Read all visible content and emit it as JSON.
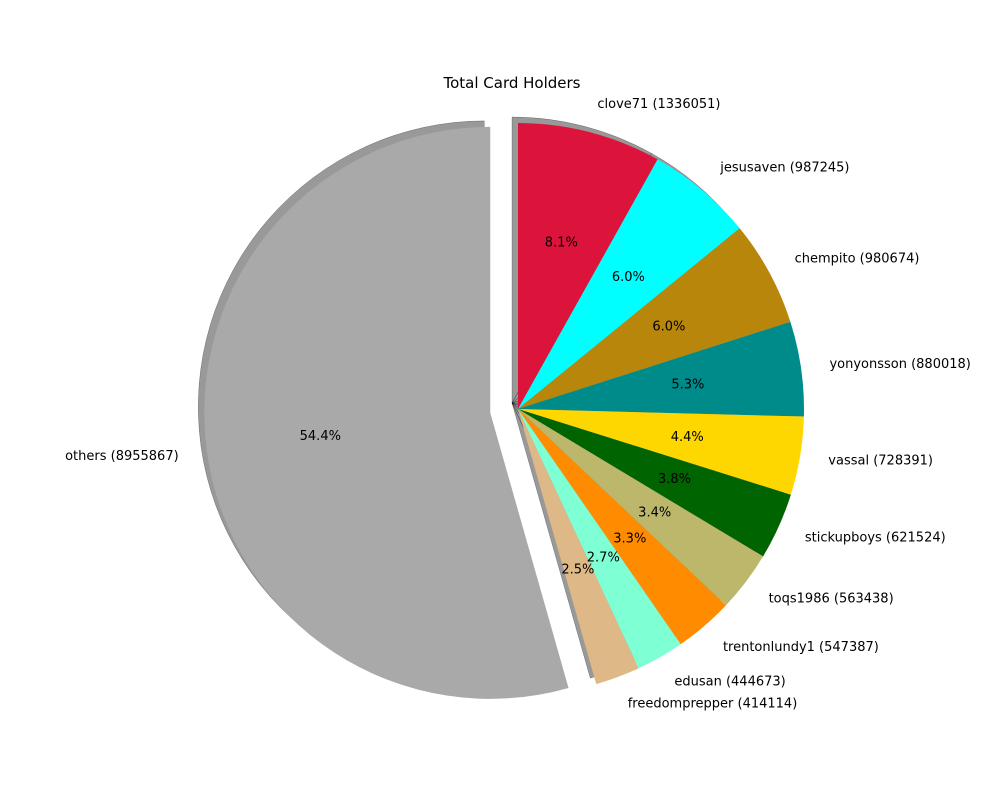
{
  "chart_data": {
    "type": "pie",
    "title": "Total Card Holders",
    "start_angle_deg": 90,
    "direction": "clockwise",
    "shadow": true,
    "exploded_slice": "others",
    "slices": [
      {
        "name": "clove71",
        "value": 1336051,
        "label": "clove71 (1336051)",
        "percent_label": "8.1%",
        "color": "#DC143C"
      },
      {
        "name": "jesusaven",
        "value": 987245,
        "label": "jesusaven (987245)",
        "percent_label": "6.0%",
        "color": "#00FFFF"
      },
      {
        "name": "chempito",
        "value": 980674,
        "label": "chempito (980674)",
        "percent_label": "6.0%",
        "color": "#B8860B"
      },
      {
        "name": "yonyonsson",
        "value": 880018,
        "label": "yonyonsson (880018)",
        "percent_label": "5.3%",
        "color": "#008B8B"
      },
      {
        "name": "vassal",
        "value": 728391,
        "label": "vassal (728391)",
        "percent_label": "4.4%",
        "color": "#FFD700"
      },
      {
        "name": "stickupboys",
        "value": 621524,
        "label": "stickupboys (621524)",
        "percent_label": "3.8%",
        "color": "#006400"
      },
      {
        "name": "toqs1986",
        "value": 563438,
        "label": "toqs1986 (563438)",
        "percent_label": "3.4%",
        "color": "#BDB76B"
      },
      {
        "name": "trentonlundy1",
        "value": 547387,
        "label": "trentonlundy1 (547387)",
        "percent_label": "3.3%",
        "color": "#FF8C00"
      },
      {
        "name": "edusan",
        "value": 444673,
        "label": "edusan (444673)",
        "percent_label": "2.7%",
        "color": "#7FFFD4"
      },
      {
        "name": "freedomprepper",
        "value": 414114,
        "label": "freedomprepper (414114)",
        "percent_label": "2.5%",
        "color": "#DEB887"
      },
      {
        "name": "others",
        "value": 8955867,
        "label": "others (8955867)",
        "percent_label": "54.4%",
        "color": "#A9A9A9"
      }
    ]
  }
}
